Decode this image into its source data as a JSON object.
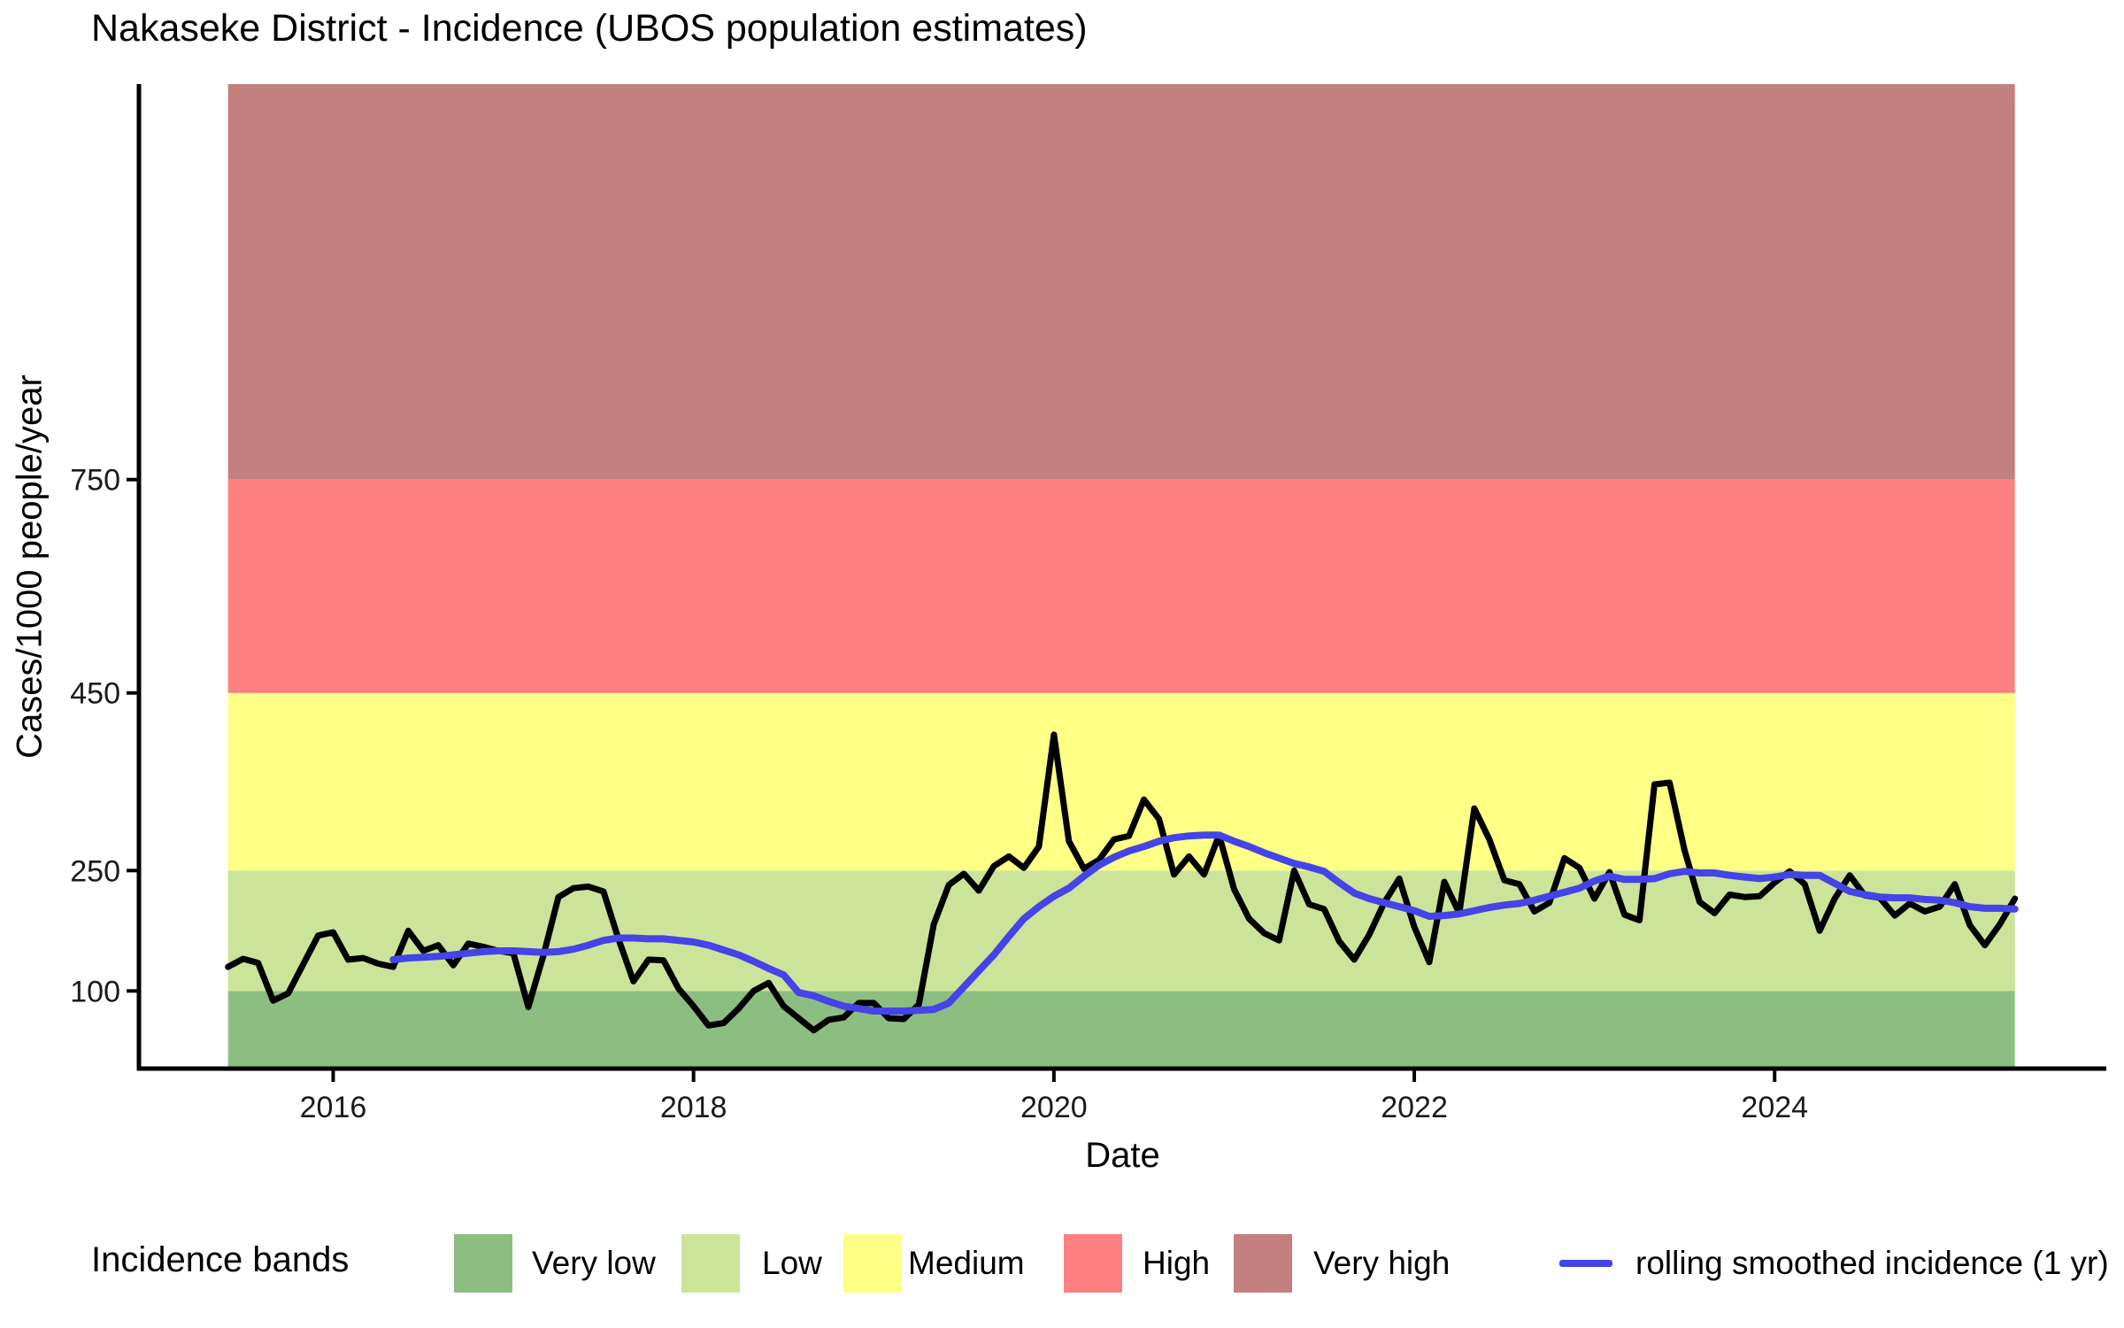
{
  "title": "Nakaseke District - Incidence (UBOS population estimates)",
  "axes": {
    "y_label": "Cases/1000 people/year",
    "x_label": "Date",
    "y_tick_labels": [
      "100",
      "250",
      "450",
      "750"
    ],
    "x_tick_labels": [
      "2016",
      "2018",
      "2020",
      "2022",
      "2024"
    ]
  },
  "legend": {
    "title": "Incidence bands",
    "band_items": [
      {
        "label": "Very low",
        "color": "#8cbe82"
      },
      {
        "label": "Low",
        "color": "#cbe49a"
      },
      {
        "label": "Medium",
        "color": "#feff85"
      },
      {
        "label": "High",
        "color": "#ff8080"
      },
      {
        "label": "Very high",
        "color": "#c47f7f"
      }
    ],
    "line_label": "rolling smoothed incidence (1 yr)",
    "line_color": "#4444e8"
  },
  "chart_data": {
    "type": "line",
    "title": "Nakaseke District - Incidence (UBOS population estimates)",
    "xlabel": "Date",
    "ylabel": "Cases/1000 people/year",
    "x_start_month": "2015-06",
    "x_frequency": "monthly",
    "x_tick_years": [
      2016,
      2018,
      2020,
      2022,
      2024
    ],
    "y_ticks": [
      100,
      250,
      450,
      750
    ],
    "grid": false,
    "legend_position": "bottom",
    "bands": [
      {
        "label": "Very low",
        "from": null,
        "to": 100,
        "color": "#8cbe82"
      },
      {
        "label": "Low",
        "from": 100,
        "to": 250,
        "color": "#cbe49a"
      },
      {
        "label": "Medium",
        "from": 250,
        "to": 450,
        "color": "#feff85"
      },
      {
        "label": "High",
        "from": 450,
        "to": 750,
        "color": "#ff8080"
      },
      {
        "label": "Very high",
        "from": 750,
        "to": null,
        "color": "#c47f7f"
      }
    ],
    "series": [
      {
        "name": "monthly incidence",
        "color": "#000000",
        "values": [
          130,
          140,
          135,
          88,
          97,
          133,
          169,
          173,
          139,
          141,
          134,
          130,
          175,
          150,
          157,
          132,
          159,
          155,
          150,
          147,
          80,
          144,
          217,
          228,
          230,
          224,
          165,
          112,
          139,
          138,
          103,
          81,
          57,
          60,
          78,
          100,
          110,
          81,
          66,
          51,
          64,
          67,
          85,
          85,
          66,
          65,
          83,
          183,
          232,
          246,
          225,
          255,
          266,
          253,
          277,
          403,
          283,
          252,
          262,
          285,
          289,
          330,
          308,
          245,
          266,
          245,
          290,
          227,
          190,
          172,
          163,
          250,
          208,
          202,
          162,
          139,
          170,
          210,
          240,
          180,
          136,
          236,
          197,
          320,
          285,
          238,
          233,
          199,
          210,
          264,
          253,
          215,
          248,
          195,
          188,
          347,
          349,
          273,
          211,
          197,
          220,
          217,
          218,
          235,
          249,
          233,
          175,
          215,
          244,
          219,
          216,
          194,
          209,
          199,
          205,
          233,
          182,
          157,
          183,
          215
        ]
      },
      {
        "name": "rolling smoothed incidence (1 yr)",
        "color": "#4444e8",
        "values": [
          null,
          null,
          null,
          null,
          null,
          null,
          null,
          null,
          null,
          null,
          null,
          139,
          141,
          142,
          143,
          145,
          147,
          149,
          150,
          150,
          149,
          148,
          149,
          152,
          157,
          163,
          166,
          166,
          165,
          165,
          163,
          161,
          157,
          151,
          145,
          137,
          128,
          120,
          98,
          94,
          87,
          81,
          78,
          75,
          75,
          75,
          76,
          77,
          85,
          105,
          125,
          145,
          168,
          190,
          205,
          218,
          228,
          243,
          256,
          265,
          272,
          277,
          283,
          287,
          289,
          290,
          290,
          283,
          277,
          270,
          264,
          258,
          254,
          249,
          235,
          222,
          215,
          210,
          205,
          200,
          193,
          194,
          196,
          200,
          204,
          207,
          209,
          213,
          218,
          223,
          228,
          237,
          243,
          239,
          239,
          240,
          246,
          249,
          247,
          247,
          244,
          242,
          240,
          242,
          245,
          244,
          244,
          234,
          224,
          220,
          217,
          216,
          216,
          214,
          213,
          210,
          205,
          203,
          203,
          202
        ]
      }
    ]
  }
}
